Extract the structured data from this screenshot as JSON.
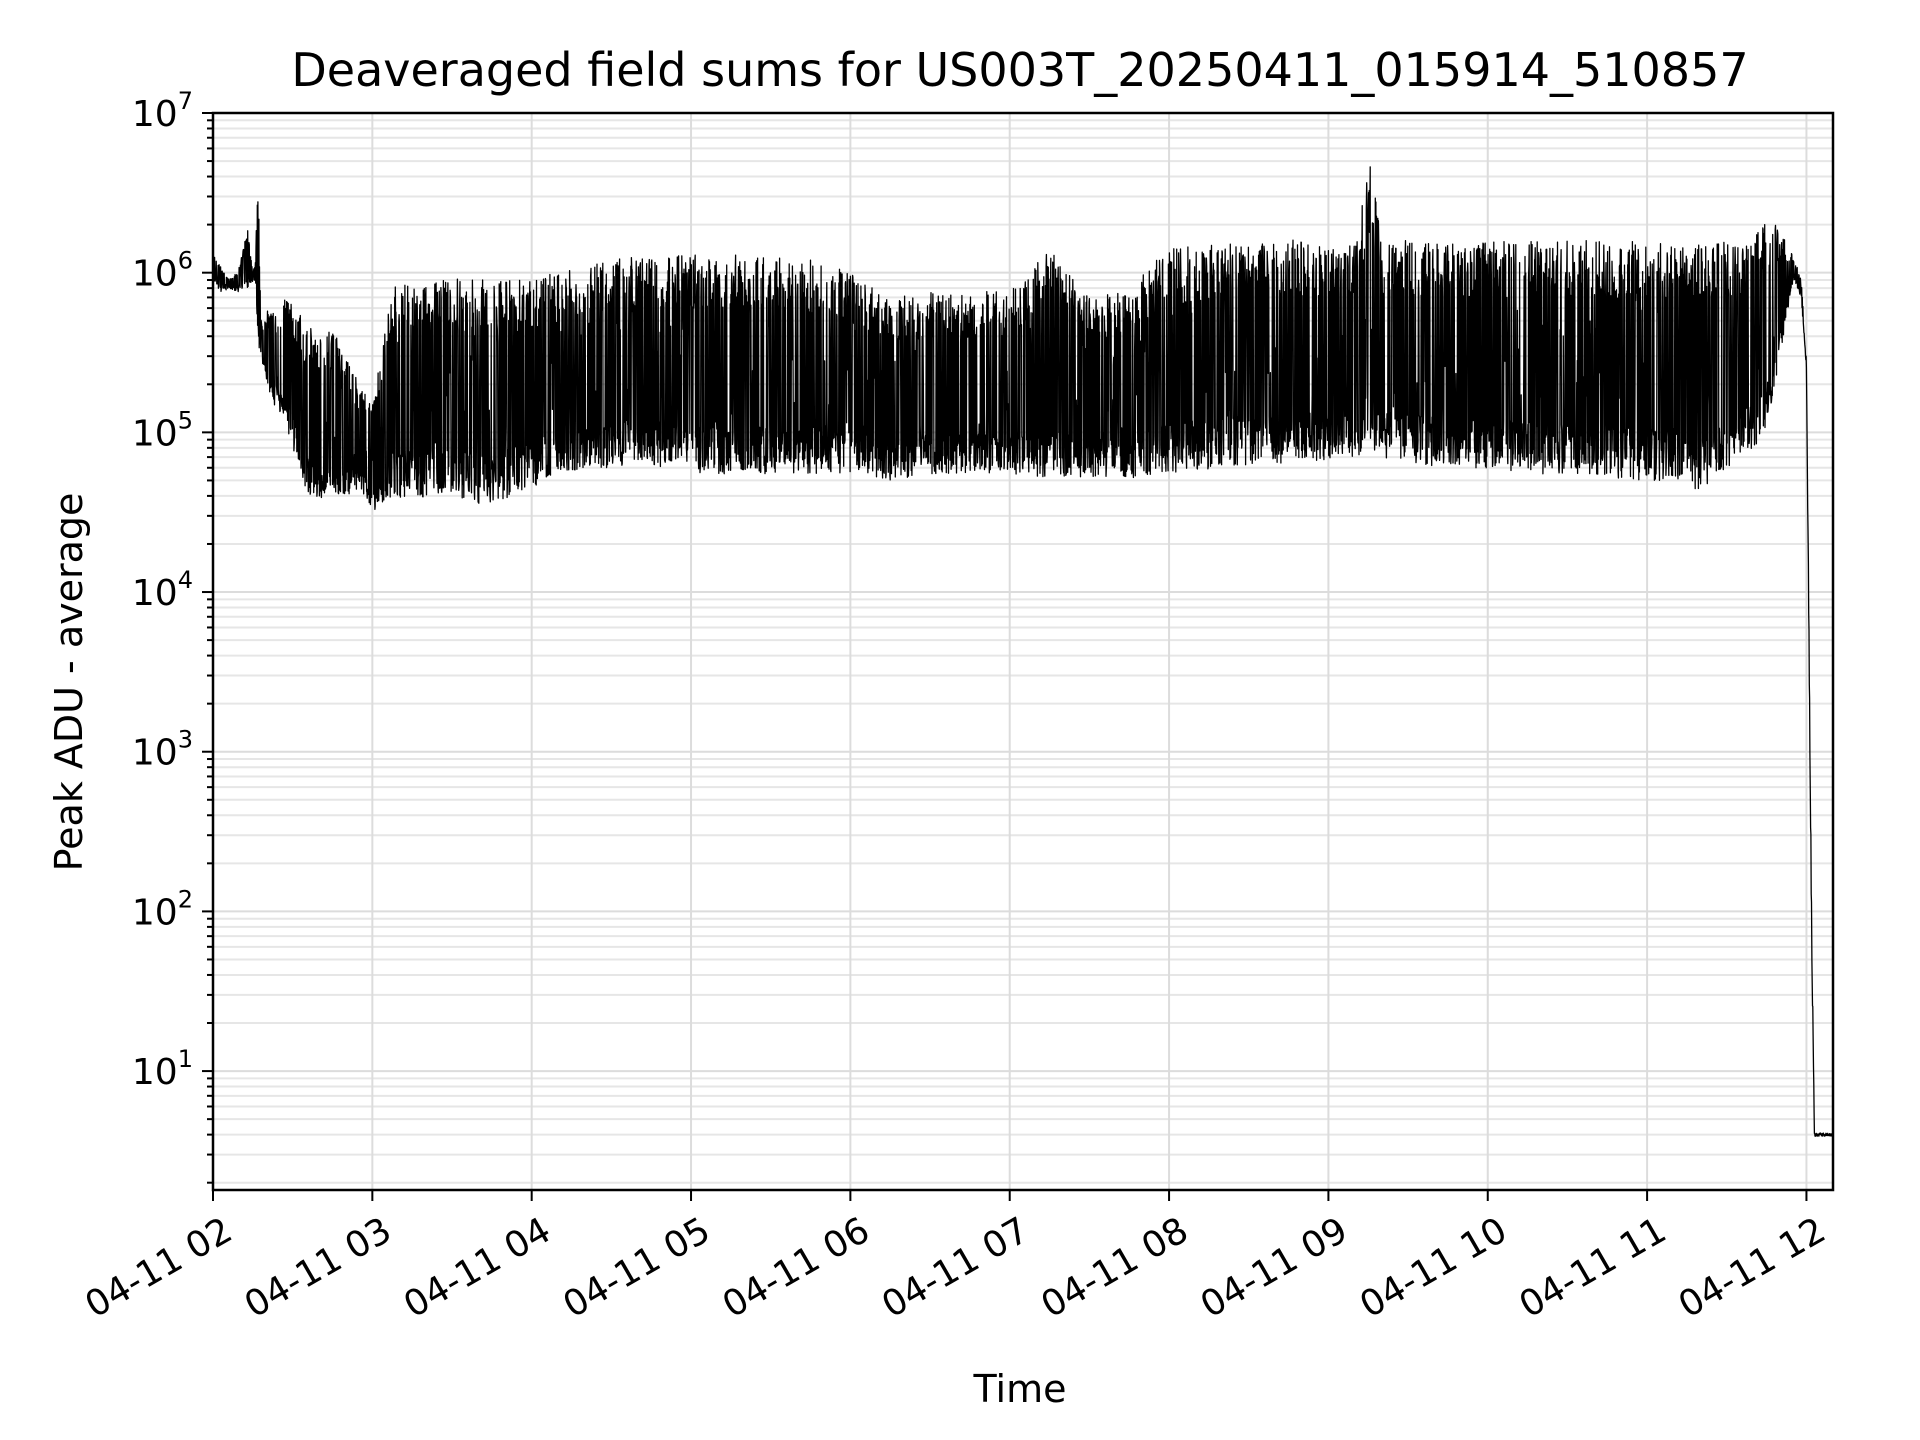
{
  "chart_data": {
    "type": "line",
    "title": "Deaveraged field sums for US003T_20250411_015914_510857",
    "xlabel": "Time",
    "ylabel": "Peak ADU - average",
    "xscale": "time",
    "yscale": "log",
    "grid": true,
    "grid_minor": true,
    "legend": "none",
    "line_color": "#000000",
    "xlim": [
      "2025-04-11 02:00",
      "2025-04-11 12:10"
    ],
    "ylim": [
      1.8,
      10000000
    ],
    "x_ticks": [
      {
        "value": "2025-04-11 02:00",
        "label": "04-11 02"
      },
      {
        "value": "2025-04-11 03:00",
        "label": "04-11 03"
      },
      {
        "value": "2025-04-11 04:00",
        "label": "04-11 04"
      },
      {
        "value": "2025-04-11 05:00",
        "label": "04-11 05"
      },
      {
        "value": "2025-04-11 06:00",
        "label": "04-11 06"
      },
      {
        "value": "2025-04-11 07:00",
        "label": "04-11 07"
      },
      {
        "value": "2025-04-11 08:00",
        "label": "04-11 08"
      },
      {
        "value": "2025-04-11 09:00",
        "label": "04-11 09"
      },
      {
        "value": "2025-04-11 10:00",
        "label": "04-11 10"
      },
      {
        "value": "2025-04-11 11:00",
        "label": "04-11 11"
      },
      {
        "value": "2025-04-11 12:00",
        "label": "04-11 12"
      }
    ],
    "y_ticks": [
      {
        "value": 10,
        "base": "10",
        "exp": "1"
      },
      {
        "value": 100,
        "base": "10",
        "exp": "2"
      },
      {
        "value": 1000,
        "base": "10",
        "exp": "3"
      },
      {
        "value": 10000,
        "base": "10",
        "exp": "4"
      },
      {
        "value": 100000,
        "base": "10",
        "exp": "5"
      },
      {
        "value": 1000000,
        "base": "10",
        "exp": "6"
      },
      {
        "value": 10000000,
        "base": "10",
        "exp": "7"
      }
    ],
    "series": [
      {
        "x": [
          "2025-04-11 02:00",
          "2025-04-11 02:03",
          "2025-04-11 02:06",
          "2025-04-11 02:10",
          "2025-04-11 02:13",
          "2025-04-11 02:15",
          "2025-04-11 02:16",
          "2025-04-11 02:17",
          "2025-04-11 02:18",
          "2025-04-11 02:20",
          "2025-04-11 02:23",
          "2025-04-11 02:27",
          "2025-04-11 02:30",
          "2025-04-11 02:35",
          "2025-04-11 02:40",
          "2025-04-11 02:45",
          "2025-04-11 02:50",
          "2025-04-11 02:55",
          "2025-04-11 03:00",
          "2025-04-11 03:08",
          "2025-04-11 03:15",
          "2025-04-11 03:22",
          "2025-04-11 03:30",
          "2025-04-11 03:38",
          "2025-04-11 03:45",
          "2025-04-11 03:52",
          "2025-04-11 04:00",
          "2025-04-11 04:10",
          "2025-04-11 04:20",
          "2025-04-11 04:30",
          "2025-04-11 04:40",
          "2025-04-11 04:50",
          "2025-04-11 05:00",
          "2025-04-11 05:15",
          "2025-04-11 05:30",
          "2025-04-11 05:45",
          "2025-04-11 06:00",
          "2025-04-11 06:15",
          "2025-04-11 06:30",
          "2025-04-11 06:45",
          "2025-04-11 07:00",
          "2025-04-11 07:15",
          "2025-04-11 07:30",
          "2025-04-11 07:45",
          "2025-04-11 08:00",
          "2025-04-11 08:10",
          "2025-04-11 08:20",
          "2025-04-11 08:30",
          "2025-04-11 08:40",
          "2025-04-11 08:50",
          "2025-04-11 09:00",
          "2025-04-11 09:10",
          "2025-04-11 09:16",
          "2025-04-11 09:20",
          "2025-04-11 09:30",
          "2025-04-11 09:45",
          "2025-04-11 10:00",
          "2025-04-11 10:15",
          "2025-04-11 10:30",
          "2025-04-11 10:45",
          "2025-04-11 11:00",
          "2025-04-11 11:15",
          "2025-04-11 11:20",
          "2025-04-11 11:30",
          "2025-04-11 11:40",
          "2025-04-11 11:45",
          "2025-04-11 11:50",
          "2025-04-11 11:55",
          "2025-04-11 11:58",
          "2025-04-11 12:00",
          "2025-04-11 12:02",
          "2025-04-11 12:03",
          "2025-04-11 12:04",
          "2025-04-11 12:05",
          "2025-04-11 12:10"
        ],
        "values_high": [
          1400000,
          1100000,
          900000,
          1100000,
          2000000,
          1000000,
          1200000,
          5000000,
          500000,
          600000,
          550000,
          700000,
          650000,
          500000,
          400000,
          450000,
          300000,
          200000,
          150000,
          850000,
          900000,
          880000,
          950000,
          900000,
          920000,
          900000,
          950000,
          1000000,
          1200000,
          1250000,
          1300000,
          1250000,
          1300000,
          1300000,
          1250000,
          1200000,
          1000000,
          700000,
          750000,
          750000,
          800000,
          1400000,
          700000,
          800000,
          1450000,
          1500000,
          1550000,
          1550000,
          1600000,
          1600000,
          1550000,
          1550000,
          5000000,
          1600000,
          1600000,
          1550000,
          1550000,
          1600000,
          1600000,
          1600000,
          1550000,
          1550000,
          1600000,
          1550000,
          1600000,
          2400000,
          1800000,
          1300000,
          900000,
          300000,
          90,
          4,
          4,
          4,
          4
        ],
        "values_low": [
          900000,
          750000,
          800000,
          750000,
          800000,
          850000,
          900000,
          350000,
          300000,
          200000,
          150000,
          120000,
          80000,
          40000,
          35000,
          42000,
          40000,
          45000,
          32000,
          40000,
          38000,
          40000,
          38000,
          36000,
          35000,
          40000,
          45000,
          55000,
          60000,
          60000,
          65000,
          60000,
          55000,
          55000,
          55000,
          55000,
          55000,
          50000,
          55000,
          55000,
          55000,
          52000,
          52000,
          50000,
          55000,
          58000,
          60000,
          62000,
          62000,
          65000,
          68000,
          70000,
          80000,
          70000,
          65000,
          60000,
          60000,
          55000,
          55000,
          52000,
          50000,
          50000,
          40000,
          60000,
          80000,
          100000,
          300000,
          900000,
          700000,
          250000,
          50,
          4,
          4,
          4,
          4
        ]
      }
    ]
  }
}
